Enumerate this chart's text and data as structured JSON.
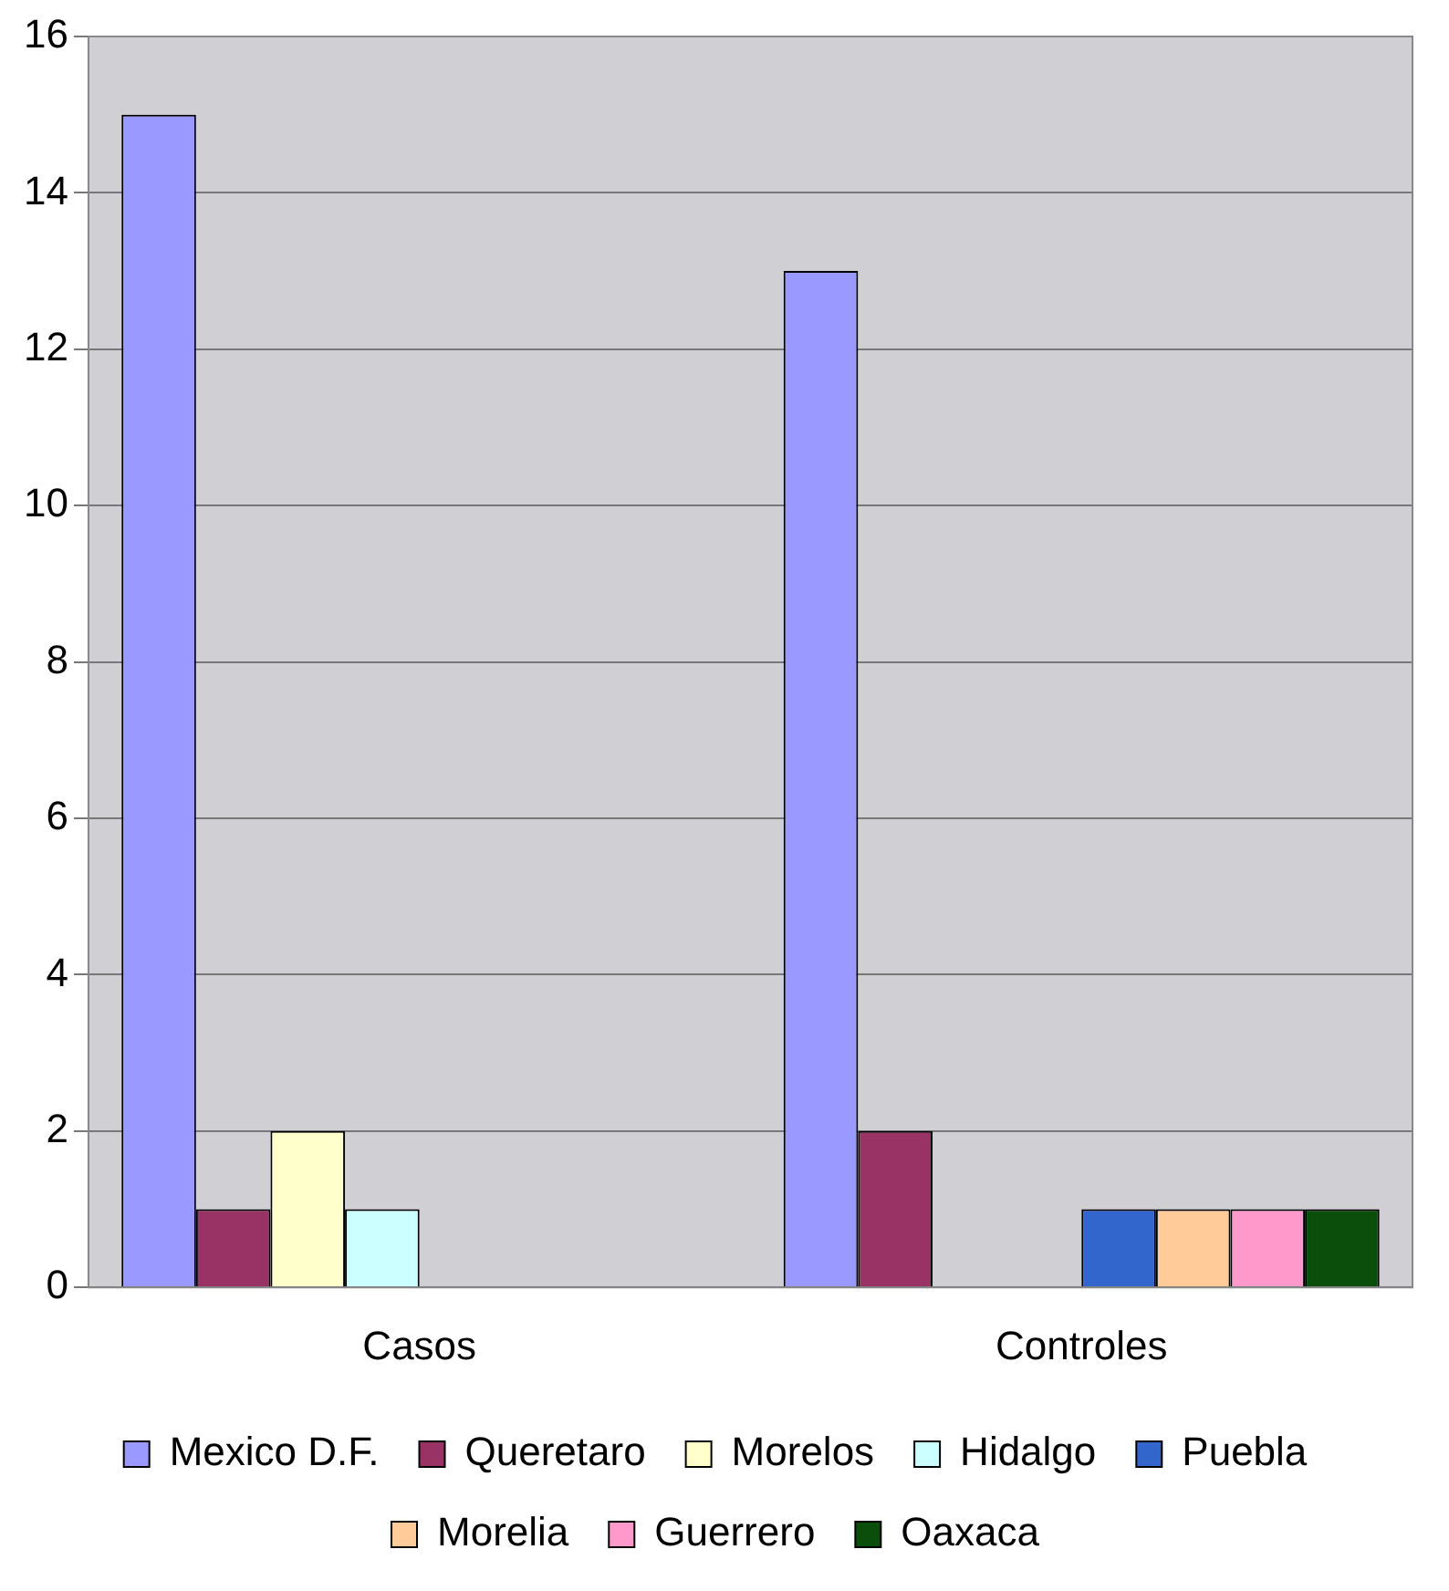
{
  "chart_data": {
    "type": "bar",
    "categories": [
      "Casos",
      "Controles"
    ],
    "series": [
      {
        "name": "Mexico D.F.",
        "color": "#9999ff",
        "values": [
          15,
          13
        ]
      },
      {
        "name": "Queretaro",
        "color": "#993366",
        "values": [
          1,
          2
        ]
      },
      {
        "name": "Morelos",
        "color": "#ffffcc",
        "values": [
          2,
          0
        ]
      },
      {
        "name": "Hidalgo",
        "color": "#ccffff",
        "values": [
          1,
          0
        ]
      },
      {
        "name": "Puebla",
        "color": "#3366cc",
        "values": [
          0,
          1
        ]
      },
      {
        "name": "Morelia",
        "color": "#ffcc99",
        "values": [
          0,
          1
        ]
      },
      {
        "name": "Guerrero",
        "color": "#ff99cc",
        "values": [
          0,
          1
        ]
      },
      {
        "name": "Oaxaca",
        "color": "#0b4d0b",
        "values": [
          0,
          1
        ]
      }
    ],
    "ylim": [
      0,
      16
    ],
    "yticks": [
      0,
      2,
      4,
      6,
      8,
      10,
      12,
      14,
      16
    ],
    "grid": "y",
    "legend": "bottom"
  }
}
